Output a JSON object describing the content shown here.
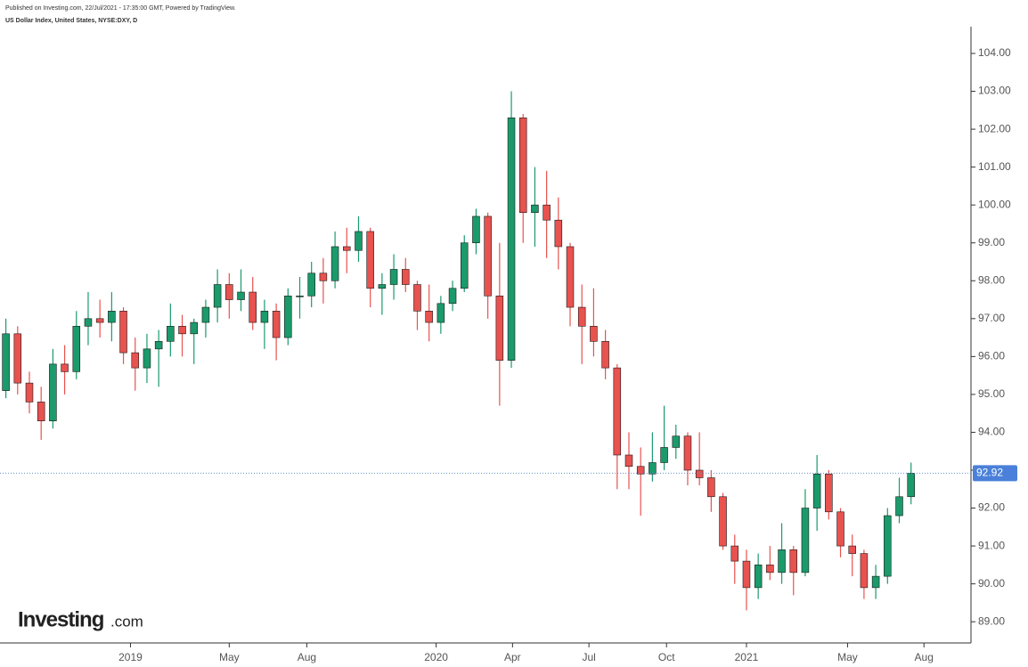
{
  "chart_data": {
    "type": "candlestick",
    "published": "Published on Investing.com, 22/Jul/2021 - 17:35:00 GMT, Powered by TradingView.",
    "title": "US Dollar Index, United States, NYSE:DXY, D",
    "watermark": {
      "brand": "Investing",
      "suffix": ".com"
    },
    "up_color": "#1b9a6c",
    "down_color": "#e8524f",
    "open": [
      95.1,
      96.6,
      95.3,
      94.8,
      94.3,
      95.8,
      95.6,
      96.8,
      97.0,
      96.9,
      97.2,
      96.1,
      95.7,
      96.2,
      96.4,
      96.8,
      96.6,
      96.9,
      97.3,
      97.9,
      97.5,
      97.7,
      96.9,
      97.2,
      96.5,
      97.6,
      97.6,
      98.2,
      98.0,
      98.9,
      98.8,
      99.3,
      97.8,
      97.9,
      98.3,
      97.9,
      97.2,
      96.9,
      97.4,
      97.8,
      99.0,
      99.7,
      97.6,
      95.9,
      102.3,
      99.8,
      100.0,
      99.6,
      98.9,
      97.3,
      96.8,
      96.4,
      95.7,
      93.4,
      93.1,
      92.9,
      93.2,
      93.6,
      93.9,
      93.0,
      92.8,
      92.3,
      91.0,
      90.6,
      89.9,
      90.5,
      90.3,
      90.9,
      90.3,
      92.0,
      92.9,
      91.9,
      91.0,
      90.8,
      89.9,
      90.2,
      91.8,
      92.3
    ],
    "high": [
      97.0,
      96.8,
      95.6,
      95.2,
      96.2,
      96.3,
      97.2,
      97.7,
      97.5,
      97.7,
      97.3,
      96.5,
      96.6,
      96.7,
      97.4,
      97.1,
      97.0,
      97.5,
      98.3,
      98.2,
      98.3,
      98.1,
      97.5,
      97.4,
      97.8,
      98.1,
      98.5,
      98.6,
      99.3,
      99.4,
      99.7,
      99.4,
      98.2,
      98.7,
      98.6,
      98.0,
      97.9,
      97.6,
      98.0,
      99.2,
      99.9,
      99.8,
      99.0,
      103.0,
      102.4,
      101.0,
      100.9,
      100.2,
      99.0,
      97.9,
      97.8,
      96.7,
      95.8,
      94.0,
      93.6,
      94.0,
      94.7,
      94.2,
      94.0,
      94.0,
      93.0,
      92.4,
      91.3,
      90.9,
      90.8,
      91.0,
      91.6,
      91.0,
      92.5,
      93.4,
      93.0,
      92.0,
      91.3,
      90.9,
      90.5,
      92.0,
      92.8,
      93.2
    ],
    "low": [
      94.9,
      95.0,
      94.5,
      93.8,
      94.1,
      95.0,
      95.4,
      96.3,
      96.5,
      96.4,
      95.8,
      95.1,
      95.3,
      95.2,
      96.0,
      96.0,
      95.8,
      96.5,
      96.9,
      97.0,
      97.2,
      96.7,
      96.2,
      95.9,
      96.3,
      97.0,
      97.3,
      97.4,
      97.8,
      98.2,
      98.5,
      97.3,
      97.1,
      97.5,
      97.7,
      96.7,
      96.4,
      96.6,
      97.2,
      97.7,
      98.7,
      97.0,
      94.7,
      95.7,
      99.0,
      98.9,
      98.6,
      98.3,
      96.8,
      95.8,
      96.0,
      95.4,
      92.5,
      92.5,
      91.8,
      92.7,
      93.0,
      93.3,
      92.6,
      92.6,
      91.9,
      90.9,
      90.0,
      89.3,
      89.6,
      90.1,
      90.0,
      89.7,
      90.2,
      91.4,
      91.7,
      90.7,
      90.2,
      89.6,
      89.6,
      90.0,
      91.6,
      92.1
    ],
    "close": [
      96.6,
      95.3,
      94.8,
      94.3,
      95.8,
      95.6,
      96.8,
      97.0,
      96.9,
      97.2,
      96.1,
      95.7,
      96.2,
      96.4,
      96.8,
      96.6,
      96.9,
      97.3,
      97.9,
      97.5,
      97.7,
      96.9,
      97.2,
      96.5,
      97.6,
      97.6,
      98.2,
      98.0,
      98.9,
      98.8,
      99.3,
      97.8,
      97.9,
      98.3,
      97.9,
      97.2,
      96.9,
      97.4,
      97.8,
      99.0,
      99.7,
      97.6,
      95.9,
      102.3,
      99.8,
      100.0,
      99.6,
      98.9,
      97.3,
      96.8,
      96.4,
      95.7,
      93.4,
      93.1,
      92.9,
      93.2,
      93.6,
      93.9,
      93.0,
      92.8,
      92.3,
      91.0,
      90.6,
      89.9,
      90.5,
      90.3,
      90.9,
      90.3,
      92.0,
      92.9,
      91.9,
      91.0,
      90.8,
      89.9,
      90.2,
      91.8,
      92.3,
      92.92
    ],
    "last_value": 92.92,
    "xlim": [
      -0.5,
      82.1
    ],
    "xticks": [
      {
        "value": 10.6,
        "label": "2019"
      },
      {
        "value": 19.0,
        "label": "May"
      },
      {
        "value": 25.6,
        "label": "Aug"
      },
      {
        "value": 36.6,
        "label": "2020"
      },
      {
        "value": 43.1,
        "label": "Apr"
      },
      {
        "value": 49.6,
        "label": "Jul"
      },
      {
        "value": 56.2,
        "label": "Oct"
      },
      {
        "value": 63.0,
        "label": "2021"
      },
      {
        "value": 71.6,
        "label": "May"
      },
      {
        "value": 78.1,
        "label": "Aug"
      }
    ],
    "ylim": [
      88.44,
      105.41
    ],
    "yticks": [
      {
        "value": 89,
        "label": "89.00"
      },
      {
        "value": 90,
        "label": "90.00"
      },
      {
        "value": 91,
        "label": "91.00"
      },
      {
        "value": 92,
        "label": "92.00"
      },
      {
        "value": 93,
        "label": "93.00"
      },
      {
        "value": 94,
        "label": "94.00"
      },
      {
        "value": 95,
        "label": "95.00"
      },
      {
        "value": 96,
        "label": "96.00"
      },
      {
        "value": 97,
        "label": "97.00"
      },
      {
        "value": 98,
        "label": "98.00"
      },
      {
        "value": 99,
        "label": "99.00"
      },
      {
        "value": 100,
        "label": "100.00"
      },
      {
        "value": 101,
        "label": "101.00"
      },
      {
        "value": 102,
        "label": "102.00"
      },
      {
        "value": 103,
        "label": "103.00"
      },
      {
        "value": 104,
        "label": "104.00"
      }
    ]
  }
}
